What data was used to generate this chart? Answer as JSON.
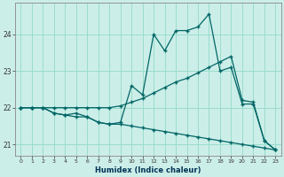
{
  "xlabel": "Humidex (Indice chaleur)",
  "bg_color": "#cceee8",
  "grid_color": "#99ddcc",
  "line_color": "#006666",
  "xlim": [
    -0.5,
    23.5
  ],
  "ylim": [
    20.7,
    24.85
  ],
  "yticks": [
    21,
    22,
    23,
    24
  ],
  "xticks": [
    0,
    1,
    2,
    3,
    4,
    5,
    6,
    7,
    8,
    9,
    10,
    11,
    12,
    13,
    14,
    15,
    16,
    17,
    18,
    19,
    20,
    21,
    22,
    23
  ],
  "line1_x": [
    0,
    1,
    2,
    3,
    4,
    5,
    6,
    7,
    8,
    9,
    10,
    11,
    12,
    13,
    14,
    15,
    16,
    17,
    18,
    19,
    20,
    21,
    22,
    23
  ],
  "line1_y": [
    22.0,
    22.0,
    22.0,
    21.85,
    21.8,
    21.75,
    21.75,
    21.6,
    21.55,
    21.6,
    22.6,
    22.35,
    24.0,
    23.55,
    24.1,
    24.1,
    24.2,
    24.55,
    23.0,
    23.1,
    22.1,
    22.1,
    21.1,
    20.85
  ],
  "line2_x": [
    0,
    1,
    2,
    3,
    4,
    5,
    6,
    7,
    8,
    9,
    10,
    11,
    12,
    13,
    14,
    15,
    16,
    17,
    18,
    19,
    20,
    21,
    22,
    23
  ],
  "line2_y": [
    22.0,
    22.0,
    22.0,
    22.0,
    22.0,
    22.0,
    22.0,
    22.0,
    22.0,
    22.05,
    22.15,
    22.25,
    22.4,
    22.55,
    22.7,
    22.8,
    22.95,
    23.1,
    23.25,
    23.4,
    22.2,
    22.15,
    21.1,
    20.85
  ],
  "line3_x": [
    0,
    1,
    2,
    3,
    4,
    5,
    6,
    7,
    8,
    9,
    10,
    11,
    12,
    13,
    14,
    15,
    16,
    17,
    18,
    19,
    20,
    21,
    22,
    23
  ],
  "line3_y": [
    22.0,
    22.0,
    22.0,
    21.85,
    21.8,
    21.85,
    21.75,
    21.6,
    21.55,
    21.55,
    21.5,
    21.45,
    21.4,
    21.35,
    21.3,
    21.25,
    21.2,
    21.15,
    21.1,
    21.05,
    21.0,
    20.95,
    20.9,
    20.85
  ]
}
